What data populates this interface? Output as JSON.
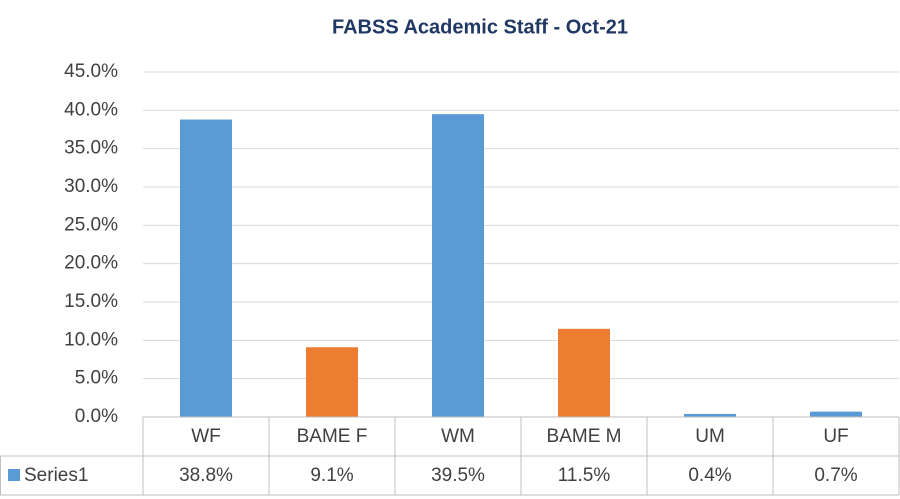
{
  "chart_data": {
    "type": "bar",
    "title": "FABSS Academic Staff - Oct-21",
    "categories": [
      "WF",
      "BAME F",
      "WM",
      "BAME M",
      "UM",
      "UF"
    ],
    "series": [
      {
        "name": "Series1",
        "color": "#5b9bd5",
        "colors": [
          "#5b9bd5",
          "#ed7d31",
          "#5b9bd5",
          "#ed7d31",
          "#5b9bd5",
          "#5b9bd5"
        ],
        "values": [
          38.8,
          9.1,
          39.5,
          11.5,
          0.4,
          0.7
        ],
        "value_labels": [
          "38.8%",
          "9.1%",
          "39.5%",
          "11.5%",
          "0.4%",
          "0.7%"
        ]
      }
    ],
    "ylim": [
      0,
      45
    ],
    "yticks": [
      {
        "value": 0,
        "label": "0.0%"
      },
      {
        "value": 5,
        "label": "5.0%"
      },
      {
        "value": 10,
        "label": "10.0%"
      },
      {
        "value": 15,
        "label": "15.0%"
      },
      {
        "value": 20,
        "label": "20.0%"
      },
      {
        "value": 25,
        "label": "25.0%"
      },
      {
        "value": 30,
        "label": "30.0%"
      },
      {
        "value": 35,
        "label": "35.0%"
      },
      {
        "value": 40,
        "label": "40.0%"
      },
      {
        "value": 45,
        "label": "45.0%"
      }
    ],
    "grid": true,
    "data_table": true
  }
}
